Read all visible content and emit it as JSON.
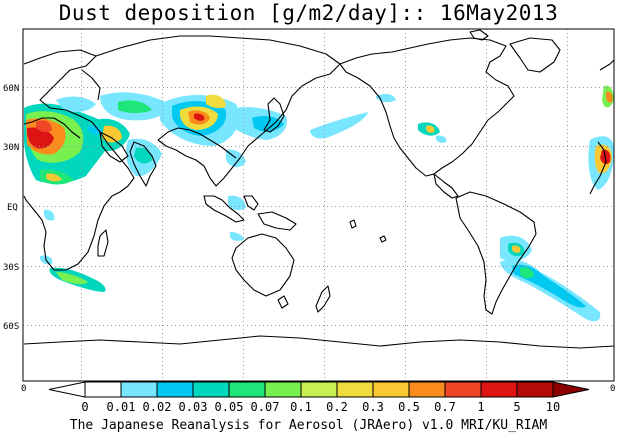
{
  "title": "Dust deposition [g/m2/day]:: 16May2013",
  "footer": "The Japanese Reanalysis for Aerosol (JRAero) v1.0 MRI/KU_RIAM",
  "lat_labels": [
    "60N",
    "30N",
    "EQ",
    "30S",
    "60S"
  ],
  "colorbar": {
    "labels": [
      "0",
      "0.01",
      "0.02",
      "0.03",
      "0.05",
      "0.07",
      "0.1",
      "0.2",
      "0.3",
      "0.5",
      "0.7",
      "1",
      "5",
      "10"
    ],
    "colors": [
      "#ffffff",
      "#78e6ff",
      "#00c8f0",
      "#00d7bc",
      "#1ee678",
      "#78f050",
      "#c8f050",
      "#f0dc3c",
      "#fac832",
      "#fa8c1e",
      "#f04628",
      "#dc1414",
      "#b40a0a",
      "#8c0000"
    ],
    "left_end": "0",
    "right_end": "0"
  }
}
